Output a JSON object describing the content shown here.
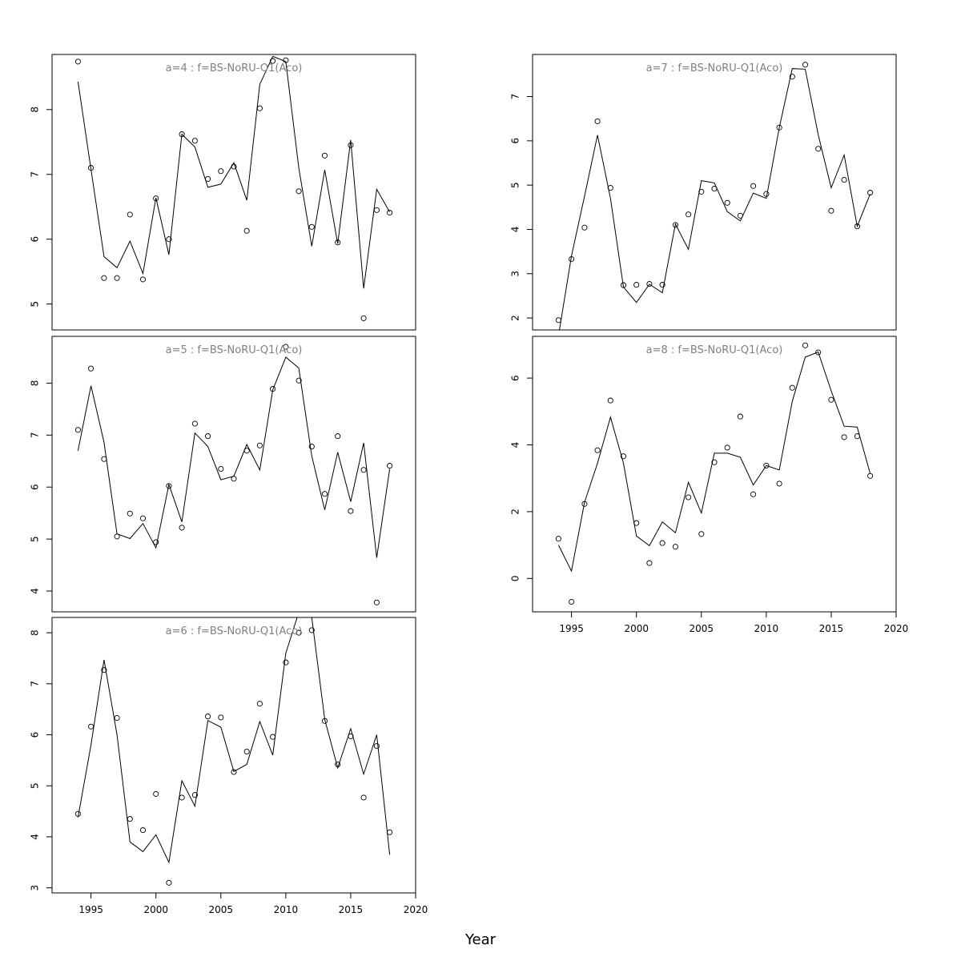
{
  "figure": {
    "xlabel": "Year"
  },
  "chart_data": [
    {
      "type": "line",
      "title": "a=4  :  f=BS-NoRU-Q1(Aco)",
      "xlim": [
        1992,
        2020
      ],
      "ylim": [
        4.6,
        8.85
      ],
      "yticks": [
        5,
        6,
        7,
        8
      ],
      "xticks": [],
      "x": [
        1994,
        1995,
        1996,
        1997,
        1998,
        1999,
        2000,
        2001,
        2002,
        2003,
        2004,
        2005,
        2006,
        2007,
        2008,
        2009,
        2010,
        2011,
        2012,
        2013,
        2014,
        2015,
        2016,
        2017,
        2018
      ],
      "series": [
        {
          "kind": "points",
          "values": [
            8.74,
            7.1,
            5.4,
            5.4,
            6.38,
            5.38,
            6.63,
            6.0,
            7.62,
            7.52,
            6.93,
            7.05,
            7.12,
            6.13,
            8.02,
            8.75,
            8.76,
            6.74,
            6.19,
            7.29,
            5.95,
            7.45,
            4.78,
            6.45,
            6.41
          ]
        },
        {
          "kind": "line",
          "values": [
            8.43,
            7.08,
            5.73,
            5.56,
            5.97,
            5.47,
            6.64,
            5.76,
            7.62,
            7.42,
            6.8,
            6.85,
            7.18,
            6.6,
            8.39,
            8.82,
            8.74,
            7.1,
            5.89,
            7.07,
            5.93,
            7.53,
            5.24,
            6.77,
            6.42
          ]
        }
      ]
    },
    {
      "type": "line",
      "title": "a=5  :  f=BS-NoRU-Q1(Aco)",
      "xlim": [
        1992,
        2020
      ],
      "ylim": [
        3.6,
        8.9
      ],
      "yticks": [
        4,
        5,
        6,
        7,
        8
      ],
      "xticks": [],
      "x": [
        1994,
        1995,
        1996,
        1997,
        1998,
        1999,
        2000,
        2001,
        2002,
        2003,
        2004,
        2005,
        2006,
        2007,
        2008,
        2009,
        2010,
        2011,
        2012,
        2013,
        2014,
        2015,
        2016,
        2017,
        2018
      ],
      "series": [
        {
          "kind": "points",
          "values": [
            7.1,
            8.28,
            6.54,
            5.05,
            5.49,
            5.4,
            4.94,
            6.02,
            5.22,
            7.22,
            6.98,
            6.35,
            6.16,
            6.7,
            6.8,
            7.89,
            8.7,
            8.05,
            6.78,
            5.87,
            6.98,
            5.54,
            6.33,
            3.78,
            6.41
          ]
        },
        {
          "kind": "line",
          "values": [
            6.7,
            7.95,
            6.86,
            5.1,
            5.01,
            5.3,
            4.83,
            6.05,
            5.33,
            7.04,
            6.78,
            6.14,
            6.21,
            6.82,
            6.33,
            7.87,
            8.5,
            8.29,
            6.6,
            5.56,
            6.67,
            5.72,
            6.85,
            4.64,
            6.35
          ]
        }
      ]
    },
    {
      "type": "line",
      "title": "a=6  :  f=BS-NoRU-Q1(Aco)",
      "xlim": [
        1992,
        2020
      ],
      "ylim": [
        2.9,
        8.3
      ],
      "yticks": [
        3,
        4,
        5,
        6,
        7,
        8
      ],
      "xticks": [
        1995,
        2000,
        2005,
        2010,
        2015,
        2020
      ],
      "x": [
        1994,
        1995,
        1996,
        1997,
        1998,
        1999,
        2000,
        2001,
        2002,
        2003,
        2004,
        2005,
        2006,
        2007,
        2008,
        2009,
        2010,
        2011,
        2012,
        2013,
        2014,
        2015,
        2016,
        2017,
        2018
      ],
      "series": [
        {
          "kind": "points",
          "values": [
            4.45,
            6.16,
            7.27,
            6.33,
            4.35,
            4.13,
            4.84,
            3.1,
            4.77,
            4.82,
            6.36,
            6.34,
            5.27,
            5.67,
            6.61,
            5.96,
            7.42,
            8.0,
            8.05,
            6.27,
            5.42,
            5.97,
            4.77,
            5.78,
            4.09
          ]
        },
        {
          "kind": "line",
          "values": [
            4.38,
            5.8,
            7.47,
            6.0,
            3.9,
            3.71,
            4.04,
            3.5,
            5.1,
            4.6,
            6.28,
            6.15,
            5.28,
            5.42,
            6.26,
            5.6,
            7.6,
            8.4,
            8.3,
            6.3,
            5.35,
            6.12,
            5.23,
            6.0,
            3.65
          ]
        }
      ]
    },
    {
      "type": "line",
      "title": "a=7  :  f=BS-NoRU-Q1(Aco)",
      "xlim": [
        1992,
        2020
      ],
      "ylim": [
        1.73,
        7.95
      ],
      "yticks": [
        2,
        3,
        4,
        5,
        6,
        7
      ],
      "xticks": [],
      "x": [
        1994,
        1995,
        1996,
        1997,
        1998,
        1999,
        2000,
        2001,
        2002,
        2003,
        2004,
        2005,
        2006,
        2007,
        2008,
        2009,
        2010,
        2011,
        2012,
        2013,
        2014,
        2015,
        2016,
        2017,
        2018
      ],
      "series": [
        {
          "kind": "points",
          "values": [
            1.95,
            3.33,
            4.04,
            6.44,
            4.94,
            2.74,
            2.75,
            2.77,
            2.75,
            4.1,
            4.34,
            4.85,
            4.92,
            4.6,
            4.31,
            4.98,
            4.8,
            6.3,
            7.45,
            7.72,
            5.82,
            4.42,
            5.12,
            4.07,
            4.83
          ]
        },
        {
          "kind": "line",
          "values": [
            1.6,
            3.4,
            4.75,
            6.13,
            4.7,
            2.7,
            2.35,
            2.76,
            2.57,
            4.12,
            3.55,
            5.1,
            5.05,
            4.4,
            4.19,
            4.82,
            4.7,
            6.3,
            7.63,
            7.62,
            6.14,
            4.94,
            5.68,
            4.07,
            4.8
          ]
        }
      ]
    },
    {
      "type": "line",
      "title": "a=8  :  f=BS-NoRU-Q1(Aco)",
      "xlim": [
        1992,
        2020
      ],
      "ylim": [
        -1.0,
        7.25
      ],
      "yticks": [
        0,
        2,
        4,
        6
      ],
      "xticks": [
        1995,
        2000,
        2005,
        2010,
        2015,
        2020
      ],
      "x": [
        1994,
        1995,
        1996,
        1997,
        1998,
        1999,
        2000,
        2001,
        2002,
        2003,
        2004,
        2005,
        2006,
        2007,
        2008,
        2009,
        2010,
        2011,
        2012,
        2013,
        2014,
        2015,
        2016,
        2017,
        2018
      ],
      "series": [
        {
          "kind": "points",
          "values": [
            1.19,
            -0.7,
            2.23,
            3.84,
            5.33,
            3.66,
            1.66,
            0.46,
            1.06,
            0.95,
            2.43,
            1.33,
            3.48,
            3.92,
            4.85,
            2.52,
            3.38,
            2.84,
            5.71,
            6.98,
            6.77,
            5.35,
            4.23,
            4.26,
            3.07
          ]
        },
        {
          "kind": "line",
          "values": [
            1.0,
            0.22,
            2.28,
            3.45,
            4.83,
            3.45,
            1.27,
            0.98,
            1.69,
            1.37,
            2.88,
            1.96,
            3.75,
            3.75,
            3.63,
            2.8,
            3.38,
            3.25,
            5.3,
            6.63,
            6.78,
            5.62,
            4.56,
            4.53,
            3.14
          ]
        }
      ]
    }
  ]
}
